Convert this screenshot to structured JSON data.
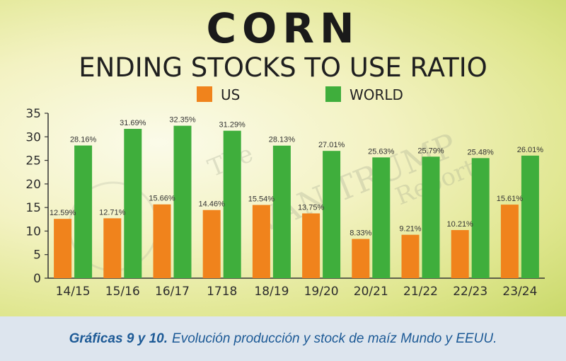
{
  "chart_data": {
    "type": "bar",
    "title": "CORN",
    "subtitle": "ENDING STOCKS TO USE RATIO",
    "categories": [
      "14/15",
      "15/16",
      "16/17",
      "1718",
      "18/19",
      "19/20",
      "20/21",
      "21/22",
      "22/23",
      "23/24"
    ],
    "series": [
      {
        "name": "US",
        "color": "#f0831c",
        "values": [
          12.59,
          12.71,
          15.66,
          14.46,
          15.54,
          13.75,
          8.33,
          9.21,
          10.21,
          15.61
        ],
        "labels": [
          "12.59%",
          "12.71%",
          "15.66%",
          "14.46%",
          "15.54%",
          "13.75%",
          "8.33%",
          "9.21%",
          "10.21%",
          "15.61%"
        ]
      },
      {
        "name": "WORLD",
        "color": "#3fae3c",
        "values": [
          28.16,
          31.69,
          32.35,
          31.29,
          28.13,
          27.01,
          25.63,
          25.79,
          25.48,
          26.01
        ],
        "labels": [
          "28.16%",
          "31.69%",
          "32.35%",
          "31.29%",
          "28.13%",
          "27.01%",
          "25.63%",
          "25.79%",
          "25.48%",
          "26.01%"
        ]
      }
    ],
    "yticks": [
      0,
      5,
      10,
      15,
      20,
      25,
      30,
      35
    ],
    "ylim": [
      0,
      35
    ],
    "grid": false,
    "legend": "top-center"
  },
  "watermark": {
    "line1": "The",
    "line2": "VAN TRUMP",
    "line3": "Report"
  },
  "caption": {
    "bold": "Gráficas 9 y 10.",
    "text": "Evolución producción y stock de maíz Mundo y EEUU."
  }
}
